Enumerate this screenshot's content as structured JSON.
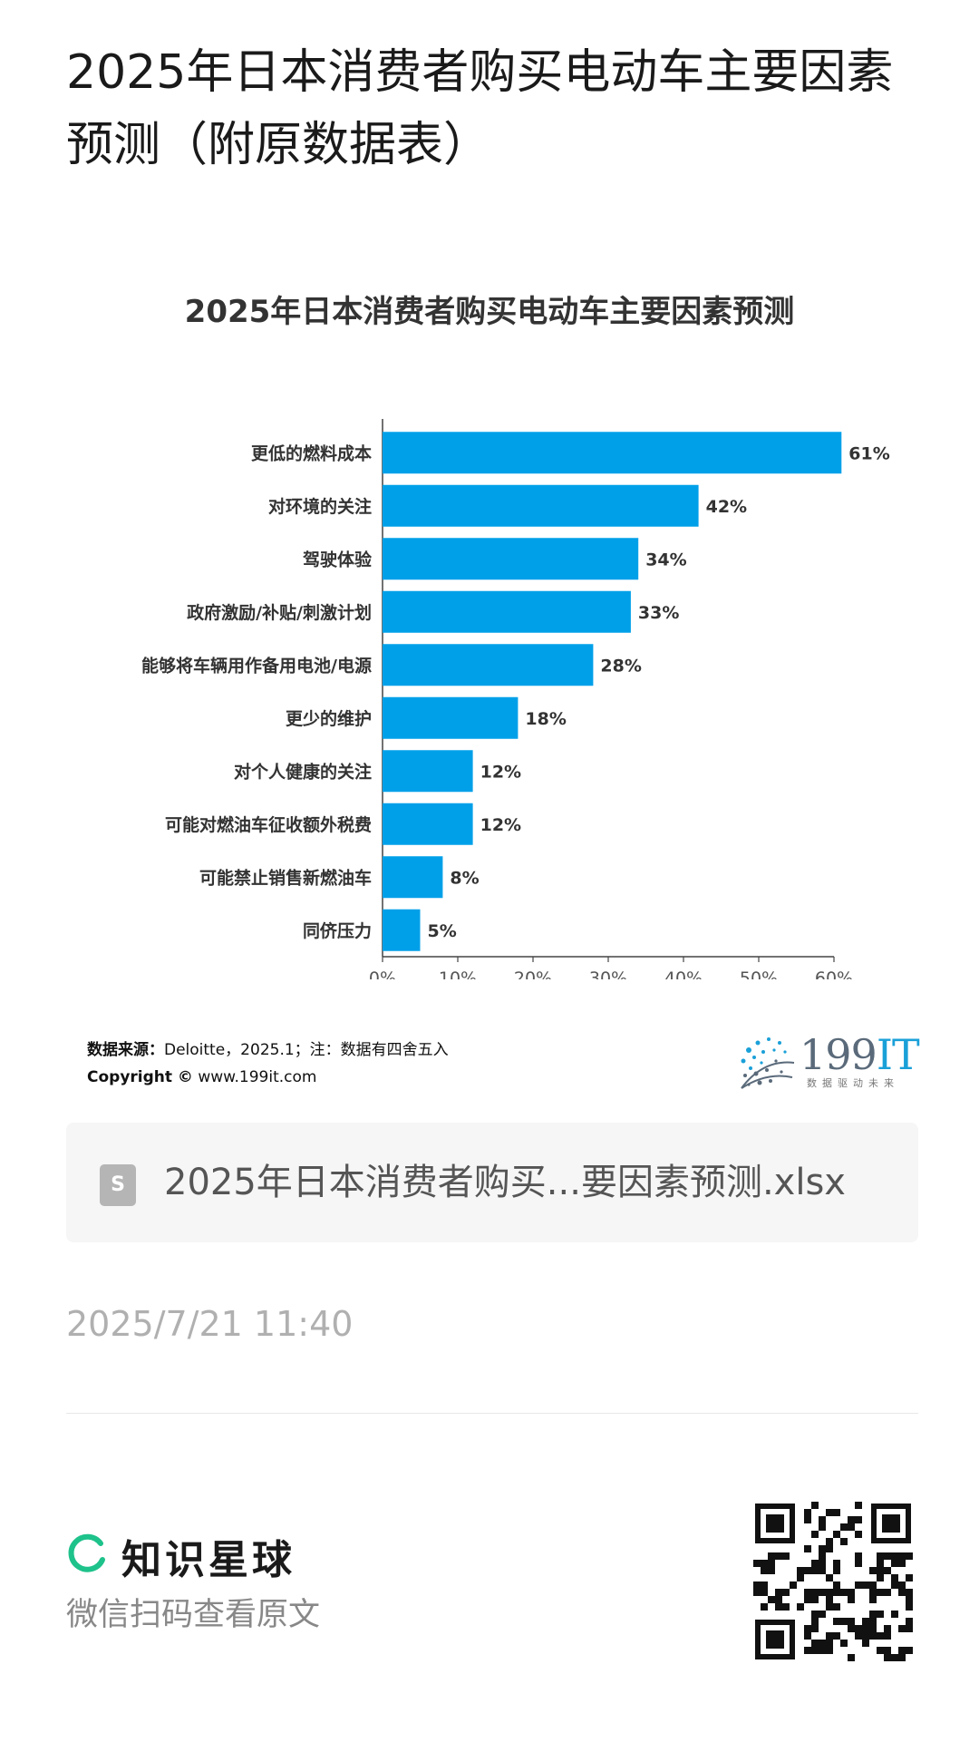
{
  "page_title": "2025年日本消费者购买电动车主要因素预测（附原数据表）",
  "chart_data": {
    "type": "bar",
    "orientation": "horizontal",
    "title": "2025年日本消费者购买电动车主要因素预测",
    "categories": [
      "更低的燃料成本",
      "对环境的关注",
      "驾驶体验",
      "政府激励/补贴/刺激计划",
      "能够将车辆用作备用电池/电源",
      "更少的维护",
      "对个人健康的关注",
      "可能对燃油车征收额外税费",
      "可能禁止销售新燃油车",
      "同侪压力"
    ],
    "values": [
      61,
      42,
      34,
      33,
      28,
      18,
      12,
      12,
      8,
      5
    ],
    "value_labels": [
      "61%",
      "42%",
      "34%",
      "33%",
      "28%",
      "18%",
      "12%",
      "12%",
      "8%",
      "5%"
    ],
    "xlim": [
      0,
      60
    ],
    "x_ticks": [
      "0%",
      "10%",
      "20%",
      "30%",
      "40%",
      "50%",
      "60%"
    ],
    "grid": false,
    "bar_color": "#00a0e9"
  },
  "source": {
    "label": "数据来源：",
    "text": "Deloitte，2025.1；注：数据有四舍五入",
    "copyright_label": "Copyright ©",
    "url": "www.199it.com"
  },
  "logo": {
    "main": "199",
    "accent": "IT",
    "tagline": "数据驱动未来"
  },
  "file": {
    "icon": "spreadsheet-icon",
    "name": "2025年日本消费者购买...要因素预测.xlsx"
  },
  "timestamp": "2025/7/21 11:40",
  "footer": {
    "brand": "知识星球",
    "hint": "微信扫码查看原文",
    "brand_color": "#1ec28b"
  }
}
